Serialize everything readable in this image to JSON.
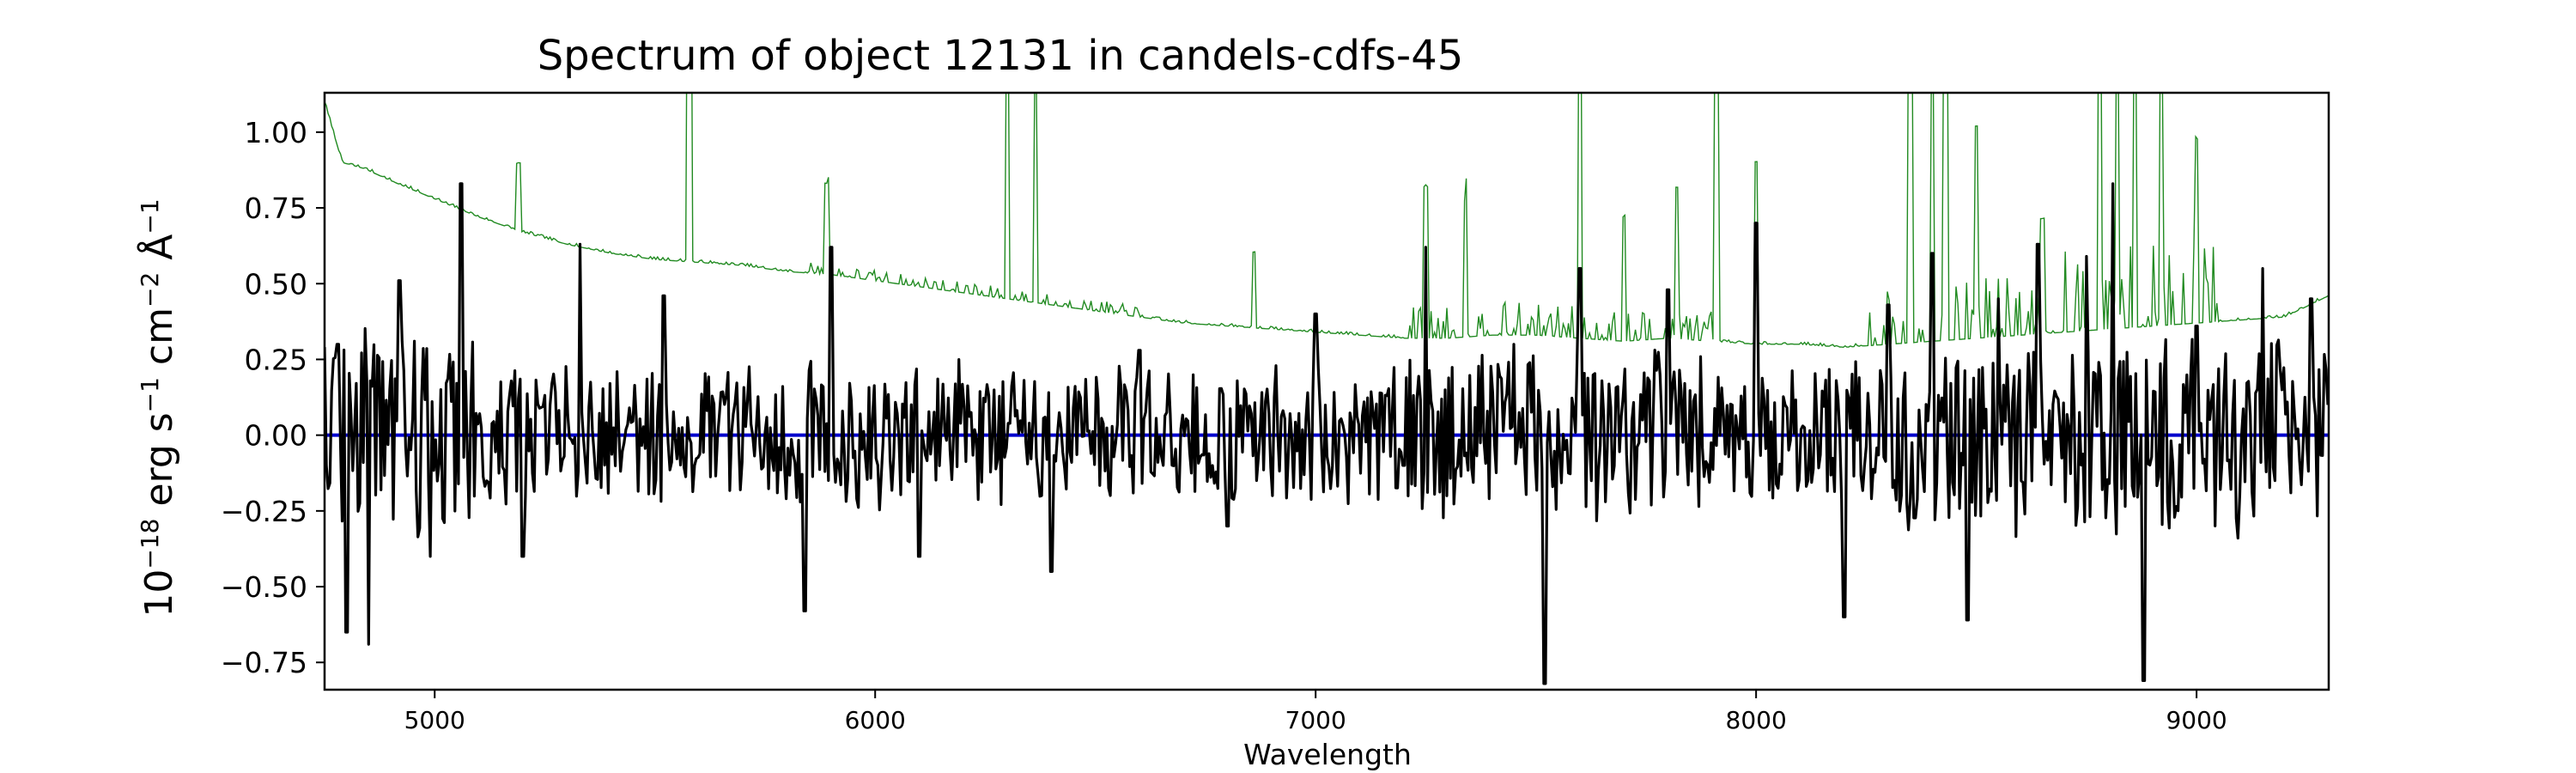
{
  "chart_data": {
    "type": "line",
    "title": "Spectrum of object 12131 in candels-cdfs-45",
    "xlabel": "Wavelength",
    "ylabel": {
      "base": "10",
      "exp1": "−18",
      "unit1": " erg s",
      "exp2": "−1",
      "unit2": " cm",
      "exp3": "−2",
      "unit3": " Å",
      "exp4": "−1"
    },
    "xlim": [
      4750,
      9300
    ],
    "ylim": [
      -0.84,
      1.13
    ],
    "xticks": [
      5000,
      6000,
      7000,
      8000,
      9000
    ],
    "xtick_labels": [
      "5000",
      "6000",
      "7000",
      "8000",
      "9000"
    ],
    "yticks": [
      -0.75,
      -0.5,
      -0.25,
      0.0,
      0.25,
      0.5,
      0.75,
      1.0
    ],
    "ytick_labels": [
      "−0.75",
      "−0.50",
      "−0.25",
      "0.00",
      "0.25",
      "0.50",
      "0.75",
      "1.00"
    ],
    "colors": {
      "flux": "#000000",
      "error": "#228b22",
      "zero_line": "#0000cd"
    },
    "series": [
      {
        "x": [
          4750,
          4790,
          4840,
          4900,
          5000,
          5100,
          5200,
          5300,
          5400,
          5500,
          5600,
          5700,
          5800,
          5900,
          6000,
          6100,
          6200,
          6300,
          6400,
          6500,
          6600,
          6700,
          6800,
          6900,
          7000,
          7100,
          7200,
          7300,
          7400,
          7500,
          7600,
          7700,
          7800,
          7900,
          8000,
          8100,
          8200,
          8300,
          8400,
          8500,
          8600,
          8700,
          8800,
          8900,
          9000,
          9100,
          9200,
          9300
        ],
        "y": [
          1.1,
          0.9,
          0.88,
          0.84,
          0.78,
          0.72,
          0.67,
          0.63,
          0.6,
          0.58,
          0.57,
          0.56,
          0.54,
          0.53,
          0.51,
          0.49,
          0.47,
          0.45,
          0.43,
          0.41,
          0.39,
          0.37,
          0.36,
          0.35,
          0.34,
          0.33,
          0.32,
          0.32,
          0.33,
          0.33,
          0.32,
          0.31,
          0.32,
          0.31,
          0.3,
          0.3,
          0.29,
          0.3,
          0.31,
          0.32,
          0.33,
          0.34,
          0.35,
          0.36,
          0.37,
          0.38,
          0.39,
          0.46
        ]
      },
      {
        "x": [
          4750,
          9300
        ],
        "y": [
          0,
          0
        ]
      },
      {
        "x": [
          4755,
          4780,
          4800,
          4850,
          4920,
          4990,
          5060,
          5200,
          5330,
          5520,
          5840,
          5900,
          6100,
          6400,
          6600,
          6800,
          7000,
          7200,
          7250,
          7450,
          7520,
          7600,
          7800,
          8000,
          8200,
          8300,
          8400,
          8480,
          8550,
          8640,
          8750,
          8810,
          8880,
          9000,
          9150,
          9260,
          9300
        ],
        "y": [
          -0.1,
          0.3,
          -0.65,
          -0.69,
          0.51,
          -0.4,
          0.83,
          -0.4,
          0.63,
          0.46,
          -0.58,
          0.62,
          -0.4,
          -0.45,
          0.28,
          -0.3,
          0.4,
          -0.1,
          0.62,
          0.3,
          -0.82,
          0.55,
          0.48,
          0.7,
          -0.6,
          0.43,
          0.6,
          -0.61,
          0.45,
          0.63,
          0.59,
          0.83,
          -0.81,
          0.36,
          0.55,
          0.45,
          0.1
        ]
      }
    ],
    "grid": false,
    "legend": "none"
  }
}
